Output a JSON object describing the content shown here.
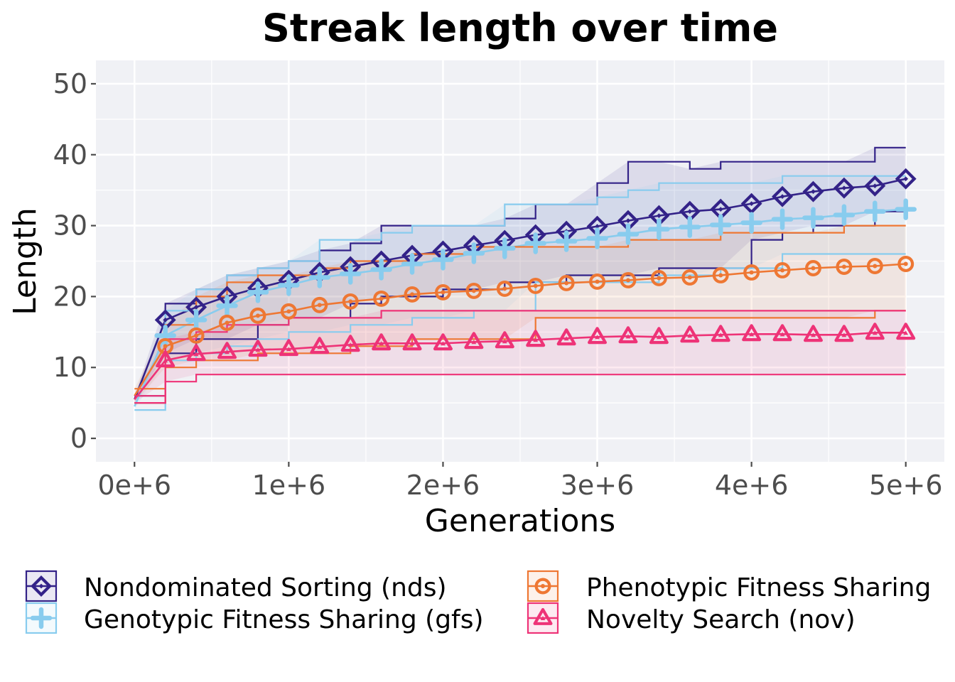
{
  "chart_data": {
    "type": "line",
    "title": "Streak length over time",
    "xlabel": "Generations",
    "ylabel": "Length",
    "xlim": [
      -250000,
      5250000
    ],
    "ylim": [
      -3.3,
      53.3
    ],
    "x_ticks": [
      0,
      1000000,
      2000000,
      3000000,
      4000000,
      5000000
    ],
    "x_tick_labels": [
      "0e+6",
      "1e+6",
      "2e+6",
      "3e+6",
      "4e+6",
      "5e+6"
    ],
    "y_ticks": [
      0,
      10,
      20,
      30,
      40,
      50
    ],
    "y_tick_labels": [
      "0",
      "10",
      "20",
      "30",
      "40",
      "50"
    ],
    "grid": true,
    "legend_position": "bottom",
    "x": [
      0,
      200000,
      400000,
      600000,
      800000,
      1000000,
      1200000,
      1400000,
      1600000,
      1800000,
      2000000,
      2200000,
      2400000,
      2600000,
      2800000,
      3000000,
      3200000,
      3400000,
      3600000,
      3800000,
      4000000,
      4200000,
      4400000,
      4600000,
      4800000,
      5000000
    ],
    "series": [
      {
        "name": "Nondominated Sorting (nds)",
        "color": "#332288",
        "marker": "diamond",
        "values": [
          5.5,
          16.7,
          18.5,
          20,
          21.2,
          22.3,
          23.4,
          24.2,
          25,
          25.8,
          26.4,
          27.2,
          27.9,
          28.7,
          29.2,
          29.9,
          30.7,
          31.4,
          32,
          32.3,
          33.1,
          34.1,
          34.8,
          35.3,
          35.6,
          36.6
        ],
        "upper": [
          6,
          19,
          21,
          23,
          24,
          25,
          26.5,
          27.5,
          30,
          30,
          30,
          30,
          31,
          33,
          33,
          36,
          39,
          39,
          38,
          39,
          39,
          39,
          39,
          39,
          41,
          41
        ],
        "lower": [
          5,
          12,
          14,
          14,
          16,
          17,
          17,
          19,
          20,
          20,
          21,
          21,
          22,
          22,
          23,
          23,
          23,
          24,
          24,
          24,
          28,
          29,
          30,
          30,
          32,
          32
        ]
      },
      {
        "name": "Genotypic Fitness Sharing (gfs)",
        "color": "#88CCEE",
        "marker": "plus",
        "values": [
          4.5,
          14.5,
          16.7,
          18.7,
          20.6,
          21.6,
          22.7,
          23.2,
          23.8,
          24.6,
          25.2,
          26.1,
          26.8,
          27.5,
          27.8,
          28.2,
          28.8,
          29.5,
          29.8,
          30.1,
          30.4,
          30.9,
          31.1,
          31.5,
          32,
          32.3
        ],
        "upper": [
          5,
          18,
          21,
          23,
          24,
          25,
          28,
          28,
          29,
          30,
          30,
          30,
          33,
          33,
          33,
          34,
          35,
          36,
          36,
          36,
          36,
          37,
          37,
          37,
          37,
          37
        ],
        "lower": [
          4,
          11,
          12,
          13,
          14,
          15,
          15,
          16,
          16,
          17,
          17,
          18,
          18,
          22,
          22,
          22,
          22,
          23,
          23,
          24,
          24,
          26,
          26,
          26,
          26,
          26
        ]
      },
      {
        "name": "Phenotypic Fitness Sharing",
        "color": "#EE7733",
        "marker": "circle",
        "values": [
          6,
          13,
          14.5,
          16.3,
          17.3,
          17.9,
          18.8,
          19.3,
          19.7,
          20.3,
          20.6,
          20.8,
          21.1,
          21.5,
          21.9,
          22.1,
          22.3,
          22.6,
          22.7,
          23,
          23.4,
          23.7,
          24,
          24.2,
          24.3,
          24.6
        ],
        "upper": [
          7,
          16,
          20,
          22,
          23,
          23,
          24,
          25,
          25,
          26,
          26,
          27,
          27,
          27,
          27,
          27,
          28,
          28,
          28,
          29,
          29,
          29,
          29,
          30,
          30,
          30
        ],
        "lower": [
          5,
          10,
          11,
          11,
          12,
          12,
          12,
          13,
          13,
          14,
          14,
          14,
          14,
          17,
          17,
          17,
          17,
          17,
          17,
          17,
          17,
          17,
          17,
          17,
          18,
          18
        ]
      },
      {
        "name": "Novelty Search (nov)",
        "color": "#EE3377",
        "marker": "triangle",
        "values": [
          5.5,
          11,
          11.9,
          12.2,
          12.5,
          12.6,
          12.9,
          13.2,
          13.4,
          13.4,
          13.4,
          13.6,
          13.7,
          13.9,
          14.1,
          14.3,
          14.4,
          14.3,
          14.5,
          14.6,
          14.7,
          14.7,
          14.6,
          14.6,
          14.9,
          14.9
        ],
        "upper": [
          6,
          14,
          15,
          16,
          16,
          17,
          17,
          17,
          18,
          18,
          18,
          18,
          18,
          18,
          18,
          18,
          18,
          18,
          18,
          18,
          18,
          18,
          18,
          18,
          18,
          18
        ],
        "lower": [
          5,
          8,
          9,
          9,
          9,
          9,
          9,
          9,
          9,
          9,
          9,
          9,
          9,
          9,
          9,
          9,
          9,
          9,
          9,
          9,
          9,
          9,
          9,
          9,
          9,
          9
        ]
      }
    ]
  }
}
